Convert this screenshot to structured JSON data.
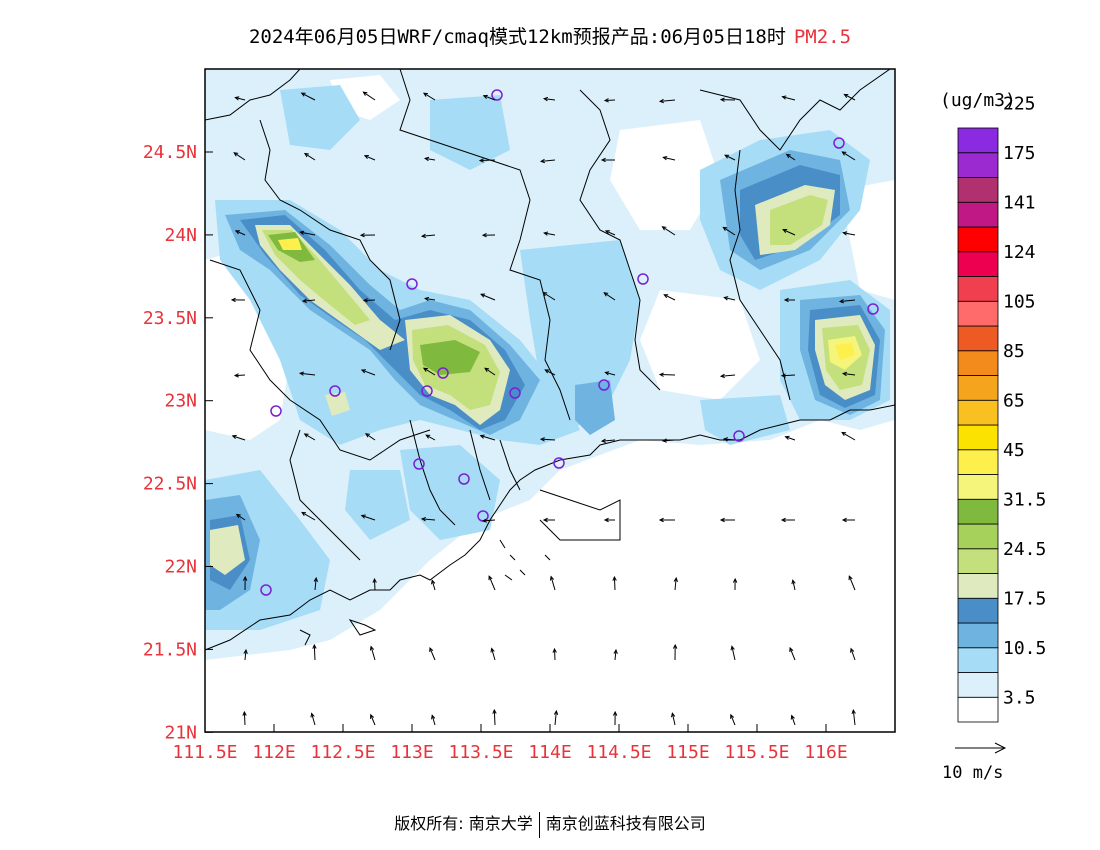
{
  "title": {
    "main": "2024年06月05日WRF/cmaq模式12km预报产品:06月05日18时",
    "variable": "PM2.5",
    "variable_color": "#e8333a"
  },
  "map": {
    "lat_ticks": [
      "24.5N",
      "24N",
      "23.5N",
      "23N",
      "22.5N",
      "22N",
      "21.5N",
      "21N"
    ],
    "lon_ticks": [
      "111.5E",
      "112E",
      "112.5E",
      "113E",
      "113.5E",
      "114E",
      "114.5E",
      "115E",
      "115.5E",
      "116E"
    ],
    "tick_color": "#e8333a",
    "lon_range": [
      111.5,
      116.5
    ],
    "lat_range": [
      21,
      25
    ]
  },
  "colorbar": {
    "unit": "(ug/m3)",
    "colors": [
      "#ffffff",
      "#dbf0fb",
      "#a6dcf6",
      "#6fb4e1",
      "#4a8ec8",
      "#dfeabf",
      "#c3e07c",
      "#a6d15a",
      "#7fb93d",
      "#f4f57a",
      "#fdf04d",
      "#fbe200",
      "#f8c020",
      "#f5a51d",
      "#f28a1c",
      "#ee5a23",
      "#ff6a6a",
      "#f04050",
      "#ee0050",
      "#ff0000",
      "#c01884",
      "#b03070",
      "#9b2bd0",
      "#8a2be2"
    ],
    "labels": [
      "3.5",
      "10.5",
      "17.5",
      "24.5",
      "31.5",
      "45",
      "65",
      "85",
      "105",
      "124",
      "141",
      "175",
      "225"
    ]
  },
  "wind_reference": {
    "label": "10 m/s"
  },
  "footer": {
    "left": "版权所有: 南京大学",
    "right": "南京创蓝科技有限公司"
  }
}
